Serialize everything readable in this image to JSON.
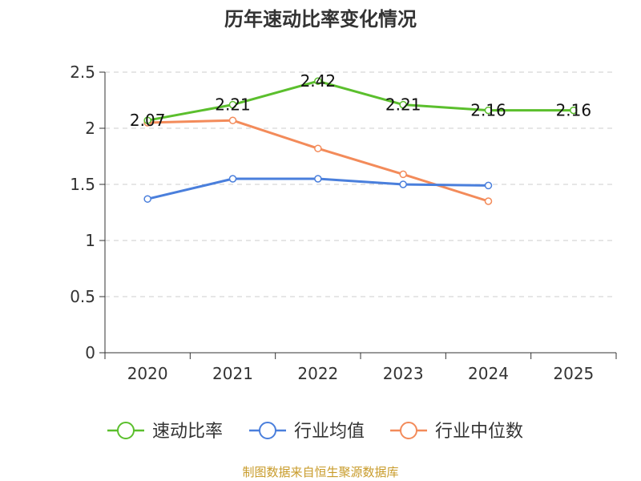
{
  "chart_data": {
    "type": "line",
    "title": "历年速动比率变化情况",
    "categories": [
      "2020",
      "2021",
      "2022",
      "2023",
      "2024",
      "2025"
    ],
    "ylim": [
      0,
      2.5
    ],
    "yticks": [
      "0",
      "0.5",
      "1",
      "1.5",
      "2",
      "2.5"
    ],
    "series": [
      {
        "name": "速动比率",
        "color": "#5bbf2d",
        "values": [
          2.07,
          2.21,
          2.42,
          2.21,
          2.16,
          2.16
        ],
        "labels": [
          "2.07",
          "2.21",
          "2.42",
          "2.21",
          "2.16",
          "2.16"
        ]
      },
      {
        "name": "行业均值",
        "color": "#4a7fdc",
        "values": [
          1.37,
          1.55,
          1.55,
          1.5,
          1.49,
          null
        ]
      },
      {
        "name": "行业中位数",
        "color": "#f38b5a",
        "values": [
          2.05,
          2.07,
          1.82,
          1.59,
          1.35,
          null
        ]
      }
    ],
    "grid": true,
    "legend": "bottom"
  },
  "source": "制图数据来自恒生聚源数据库"
}
